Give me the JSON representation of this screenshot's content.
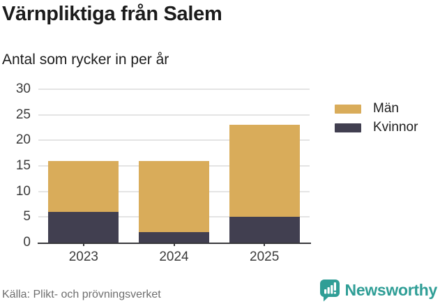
{
  "header": {
    "title": "Värnpliktiga från Salem",
    "subtitle": "Antal som rycker in per år"
  },
  "chart_data": {
    "type": "bar",
    "stacked": true,
    "title": "Värnpliktiga från Salem",
    "subtitle": "Antal som rycker in per år",
    "categories": [
      "2023",
      "2024",
      "2025"
    ],
    "series": [
      {
        "name": "Kvinnor",
        "color": "#413F50",
        "values": [
          6,
          2,
          5
        ]
      },
      {
        "name": "Män",
        "color": "#D9AC5A",
        "values": [
          10,
          14,
          18
        ]
      }
    ],
    "stack_totals": [
      16,
      16,
      23
    ],
    "xlabel": "",
    "ylabel": "",
    "ylim": [
      0,
      30
    ],
    "yticks": [
      0,
      5,
      10,
      15,
      20,
      25,
      30
    ],
    "grid": "horizontal",
    "legend": {
      "position": "right",
      "order": [
        "Män",
        "Kvinnor"
      ]
    }
  },
  "footer": {
    "source": "Källa: Plikt- och prövningsverket",
    "brand": {
      "name": "Newsworthy",
      "color": "#2F9E96",
      "icon": "newsworthy-chart-bubble-icon"
    }
  },
  "colors": {
    "men": "#D9AC5A",
    "women": "#413F50",
    "gridline": "#E4E4E4",
    "axis": "#38383B",
    "text": "#1C1C1C",
    "muted_text": "#6E6E6E",
    "brand_teal": "#2F9E96"
  }
}
